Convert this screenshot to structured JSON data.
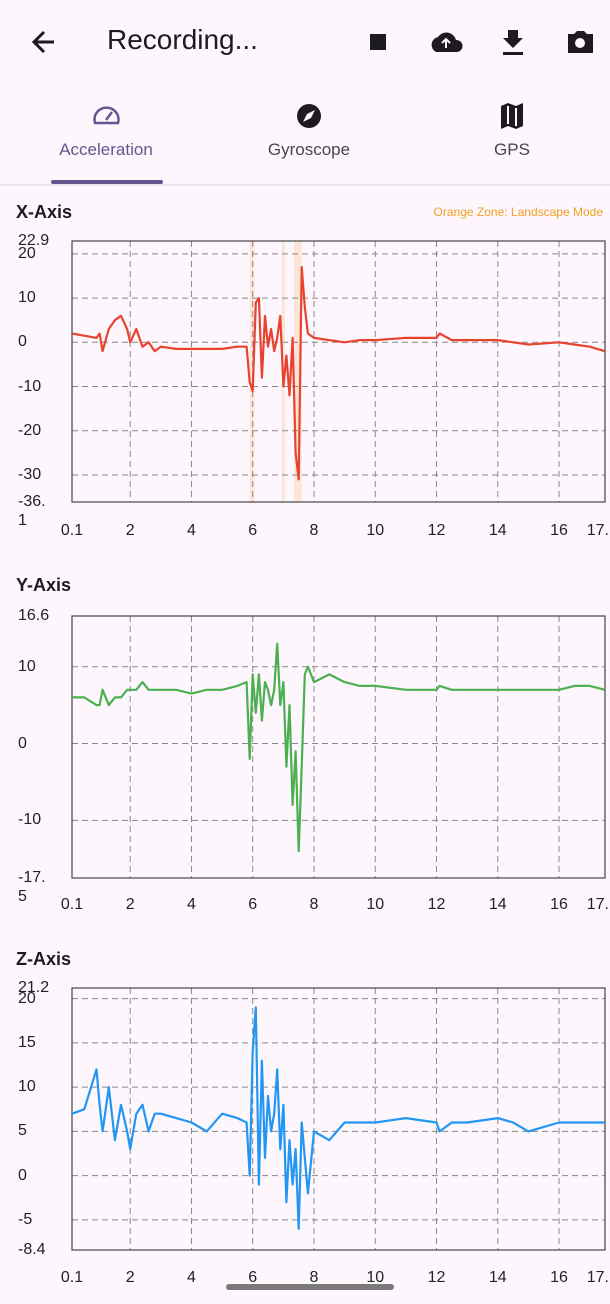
{
  "app_bar": {
    "title": "Recording..."
  },
  "tabs": [
    {
      "label": "Acceleration",
      "selected": true
    },
    {
      "label": "Gyroscope",
      "selected": false
    },
    {
      "label": "GPS",
      "selected": false
    }
  ],
  "chart_data": [
    {
      "type": "line",
      "title": "X-Axis",
      "annotation": "Orange Zone: Landscape Mode",
      "color": "#e8432f",
      "highlight_color": "#fbe0cc",
      "shaded_regions": [
        [
          5.9,
          6.05
        ],
        [
          6.95,
          7.05
        ],
        [
          7.35,
          7.6
        ]
      ],
      "x": [
        0.1,
        0.5,
        0.9,
        1.0,
        1.1,
        1.3,
        1.5,
        1.7,
        1.9,
        2.0,
        2.2,
        2.4,
        2.6,
        2.8,
        3.0,
        3.5,
        4.0,
        4.5,
        5.0,
        5.5,
        5.8,
        5.9,
        6.0,
        6.1,
        6.2,
        6.3,
        6.4,
        6.5,
        6.6,
        6.7,
        6.8,
        6.9,
        7.0,
        7.1,
        7.2,
        7.3,
        7.4,
        7.5,
        7.6,
        7.7,
        7.8,
        8.0,
        8.5,
        9.0,
        9.5,
        10.0,
        11.0,
        12.0,
        12.1,
        12.5,
        13.0,
        14.0,
        14.5,
        15.0,
        16.0,
        16.5,
        17.0,
        17.5
      ],
      "values": [
        2,
        1.5,
        1,
        2,
        -2,
        3,
        5,
        6,
        3,
        0,
        3,
        -1,
        0,
        -2,
        -1,
        -1.5,
        -1.5,
        -1.5,
        -1.5,
        -1,
        -1,
        -9,
        -11,
        9,
        10,
        -8,
        6,
        -1,
        3,
        -2,
        1,
        6,
        -10,
        -3,
        -12,
        1,
        -25,
        -31,
        17,
        8,
        2,
        1,
        0.5,
        0,
        0.5,
        0.5,
        1,
        1,
        2,
        0.5,
        0.5,
        0.5,
        0,
        -0.5,
        0,
        -0.5,
        -1,
        -2
      ],
      "xlim": [
        0.1,
        17.5
      ],
      "xticks": [
        0.1,
        2,
        4,
        6,
        8,
        10,
        12,
        14,
        16,
        {
          "value": 17.5,
          "label": "17."
        }
      ],
      "ylim": [
        -36.1,
        22.9
      ],
      "yticks": [
        -36.1,
        -30,
        -20,
        -10,
        0,
        10,
        20,
        22.9
      ],
      "grid": true
    },
    {
      "type": "line",
      "title": "Y-Axis",
      "color": "#4caf50",
      "x": [
        0.1,
        0.5,
        0.9,
        1.0,
        1.1,
        1.3,
        1.5,
        1.7,
        1.9,
        2.0,
        2.2,
        2.4,
        2.6,
        2.8,
        3.0,
        3.5,
        4.0,
        4.5,
        5.0,
        5.5,
        5.8,
        5.9,
        6.0,
        6.1,
        6.2,
        6.3,
        6.4,
        6.5,
        6.6,
        6.7,
        6.8,
        6.9,
        7.0,
        7.1,
        7.2,
        7.3,
        7.4,
        7.5,
        7.6,
        7.7,
        7.8,
        8.0,
        8.5,
        9.0,
        9.5,
        10.0,
        11.0,
        12.0,
        12.1,
        12.5,
        13.0,
        14.0,
        14.5,
        15.0,
        16.0,
        16.5,
        17.0,
        17.5
      ],
      "values": [
        6,
        6,
        5,
        5,
        7,
        5,
        6,
        6,
        7,
        7,
        7,
        8,
        7,
        7,
        7,
        7,
        6.5,
        7,
        7,
        7.5,
        8,
        -2,
        9,
        4,
        9,
        3,
        8,
        7,
        5,
        7,
        13,
        5,
        8,
        -3,
        5,
        -8,
        -1,
        -14,
        -3,
        9,
        10,
        8,
        9,
        8,
        7.5,
        7.5,
        7,
        7,
        7.5,
        7,
        7,
        7,
        7,
        7,
        7,
        7.5,
        7.5,
        7
      ],
      "xlim": [
        0.1,
        17.5
      ],
      "xticks": [
        0.1,
        2,
        4,
        6,
        8,
        10,
        12,
        14,
        16,
        {
          "value": 17.5,
          "label": "17."
        }
      ],
      "ylim": [
        -17.5,
        16.6
      ],
      "yticks": [
        -17.5,
        -10,
        0,
        10,
        16.6
      ],
      "grid": true
    },
    {
      "type": "line",
      "title": "Z-Axis",
      "color": "#2196f3",
      "x": [
        0.1,
        0.5,
        0.9,
        1.0,
        1.1,
        1.3,
        1.5,
        1.7,
        1.9,
        2.0,
        2.2,
        2.4,
        2.6,
        2.8,
        3.0,
        3.5,
        4.0,
        4.5,
        5.0,
        5.5,
        5.8,
        5.9,
        6.0,
        6.1,
        6.2,
        6.3,
        6.4,
        6.5,
        6.6,
        6.7,
        6.8,
        6.9,
        7.0,
        7.1,
        7.2,
        7.3,
        7.4,
        7.5,
        7.6,
        7.7,
        7.8,
        8.0,
        8.5,
        9.0,
        9.5,
        10.0,
        11.0,
        12.0,
        12.1,
        12.5,
        13.0,
        14.0,
        14.5,
        15.0,
        16.0,
        16.5,
        17.0,
        17.5
      ],
      "values": [
        7,
        7.5,
        12,
        8,
        5,
        10,
        4,
        8,
        5,
        3,
        7,
        8,
        5,
        7,
        7,
        6.5,
        6,
        5,
        7,
        6.5,
        6,
        0,
        14,
        19,
        -1,
        13,
        2,
        9,
        5,
        7,
        12,
        3,
        8,
        -3,
        4,
        -1,
        3,
        -6,
        6,
        2,
        -2,
        5,
        4,
        6,
        6,
        6,
        6.5,
        6,
        5,
        6,
        6,
        6.5,
        6,
        5,
        6,
        6,
        6,
        6
      ],
      "xlim": [
        0.1,
        17.5
      ],
      "xticks": [
        0.1,
        2,
        4,
        6,
        8,
        10,
        12,
        14,
        16,
        {
          "value": 17.5,
          "label": "17."
        }
      ],
      "ylim": [
        -8.4,
        21.2
      ],
      "yticks": [
        -8.4,
        -5,
        0,
        5,
        10,
        15,
        20,
        21.2
      ],
      "grid": true
    }
  ]
}
